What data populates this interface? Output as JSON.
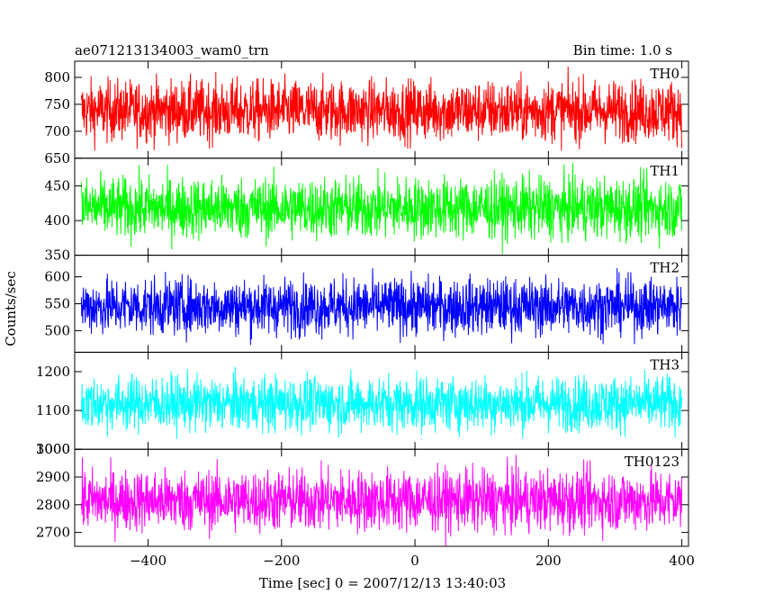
{
  "chart_data": {
    "type": "line",
    "title": "ae071213134003_wam0_trn",
    "bin_time_label": "Bin time: 1.0 s",
    "xlabel": "Time [sec] 0 = 2007/12/13 13:40:03",
    "ylabel": "Counts/sec",
    "xlim": [
      -510,
      410
    ],
    "x_ticks": [
      -400,
      -200,
      0,
      200,
      400
    ],
    "x_tick_labels": [
      "−400",
      "−200",
      "0",
      "200",
      "400"
    ],
    "x_data_range": [
      -500,
      400
    ],
    "grid": false,
    "panels": [
      {
        "series": "TH0",
        "color": "#ff0000",
        "ylim": [
          650,
          830
        ],
        "mean": 738,
        "std": 28,
        "y_ticks": [
          650,
          700,
          750,
          800
        ],
        "y_tick_labels": [
          "650",
          "700",
          "750",
          "800"
        ]
      },
      {
        "series": "TH1",
        "color": "#00ff00",
        "ylim": [
          350,
          490
        ],
        "mean": 418,
        "std": 22,
        "y_ticks": [
          350,
          400,
          450
        ],
        "y_tick_labels": [
          "350",
          "400",
          "450"
        ]
      },
      {
        "series": "TH2",
        "color": "#0000ff",
        "ylim": [
          460,
          640
        ],
        "mean": 545,
        "std": 26,
        "y_ticks": [
          500,
          550,
          600
        ],
        "y_tick_labels": [
          "500",
          "550",
          "600"
        ]
      },
      {
        "series": "TH3",
        "color": "#00ffff",
        "ylim": [
          1000,
          1250
        ],
        "mean": 1118,
        "std": 35,
        "y_ticks": [
          1000,
          1100,
          1200
        ],
        "y_tick_labels": [
          "1000",
          "1100",
          "1200"
        ]
      },
      {
        "series": "TH0123",
        "color": "#ff00ff",
        "ylim": [
          2650,
          3000
        ],
        "mean": 2815,
        "std": 55,
        "y_ticks": [
          2700,
          2800,
          2900,
          3000
        ],
        "y_tick_labels": [
          "2700",
          "2800",
          "2900",
          "3000"
        ]
      }
    ]
  }
}
